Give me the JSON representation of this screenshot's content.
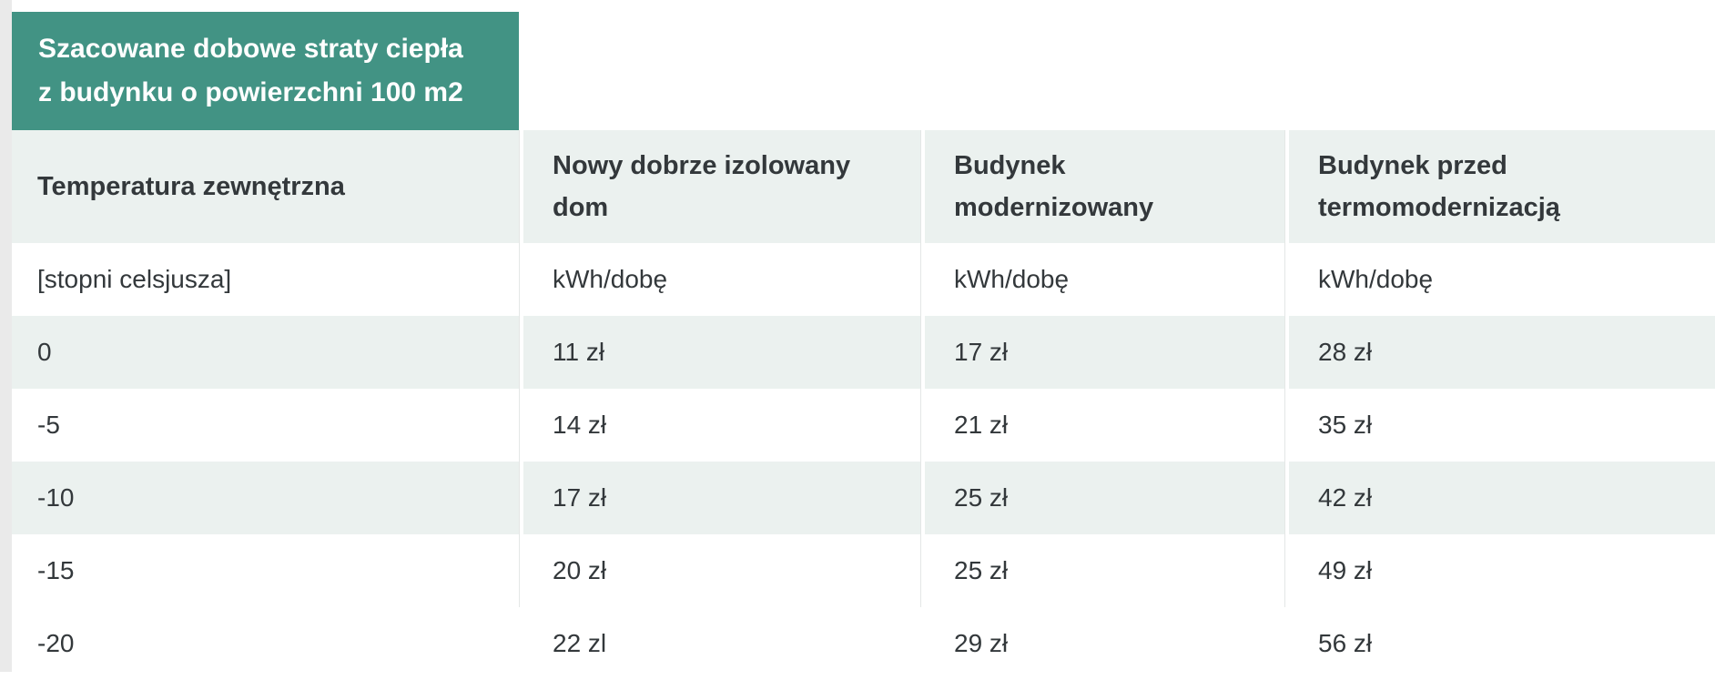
{
  "chart_data": {
    "type": "table",
    "title": "Szacowane dobowe straty ciepła z budynku o powierzchni 100 m2",
    "title_lines": [
      "Szacowane dobowe straty ciepła",
      "z budynku o powierzchni 100 m2"
    ],
    "columns": [
      "Temperatura zewnętrzna",
      "Nowy dobrze izolowany dom",
      "Budynek modernizowany",
      "Budynek przed termomodernizacją"
    ],
    "units_row": [
      "[stopni celsjusza]",
      "kWh/dobę",
      "kWh/dobę",
      "kWh/dobę"
    ],
    "rows": [
      [
        "0",
        "11 zł",
        "17 zł",
        "28 zł"
      ],
      [
        "-5",
        "14 zł",
        "21 zł",
        "35 zł"
      ],
      [
        "-10",
        "17 zł",
        "25 zł",
        "42 zł"
      ],
      [
        "-15",
        "20 zł",
        "25 zł",
        "49 zł"
      ],
      [
        "-20",
        "22 zl",
        "29 zł",
        "56 zł"
      ]
    ]
  },
  "colors": {
    "banner_bg": "#429384",
    "banner_text": "#ffffff",
    "row_stripe": "#ebf1ef",
    "row_white": "#ffffff",
    "cell_text": "#33383b",
    "page_left_margin": "#eaeaea",
    "column_hairline": "#e4e7e6"
  }
}
